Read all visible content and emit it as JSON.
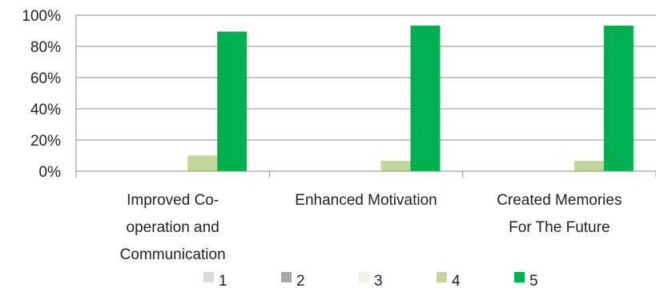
{
  "chart_data": {
    "type": "bar",
    "categories": [
      [
        "Improved Co-",
        "operation and",
        "Communication"
      ],
      [
        "Enhanced Motivation"
      ],
      [
        "Created Memories",
        "For The Future"
      ]
    ],
    "series": [
      {
        "name": "1",
        "color": "#d9d9d9",
        "values": [
          0,
          0,
          0
        ]
      },
      {
        "name": "2",
        "color": "#a6a6a6",
        "values": [
          0,
          0,
          0
        ]
      },
      {
        "name": "3",
        "color": "#ebf1de",
        "values": [
          0,
          0,
          0
        ]
      },
      {
        "name": "4",
        "color": "#c4d79b",
        "values": [
          10,
          6.7,
          6.7
        ]
      },
      {
        "name": "5",
        "color": "#00b050",
        "values": [
          89.5,
          93.3,
          93.3
        ]
      }
    ],
    "y_ticks": [
      "0%",
      "20%",
      "40%",
      "60%",
      "80%",
      "100%"
    ],
    "ylim": [
      0,
      100
    ],
    "grid": true,
    "legend": "bottom"
  }
}
